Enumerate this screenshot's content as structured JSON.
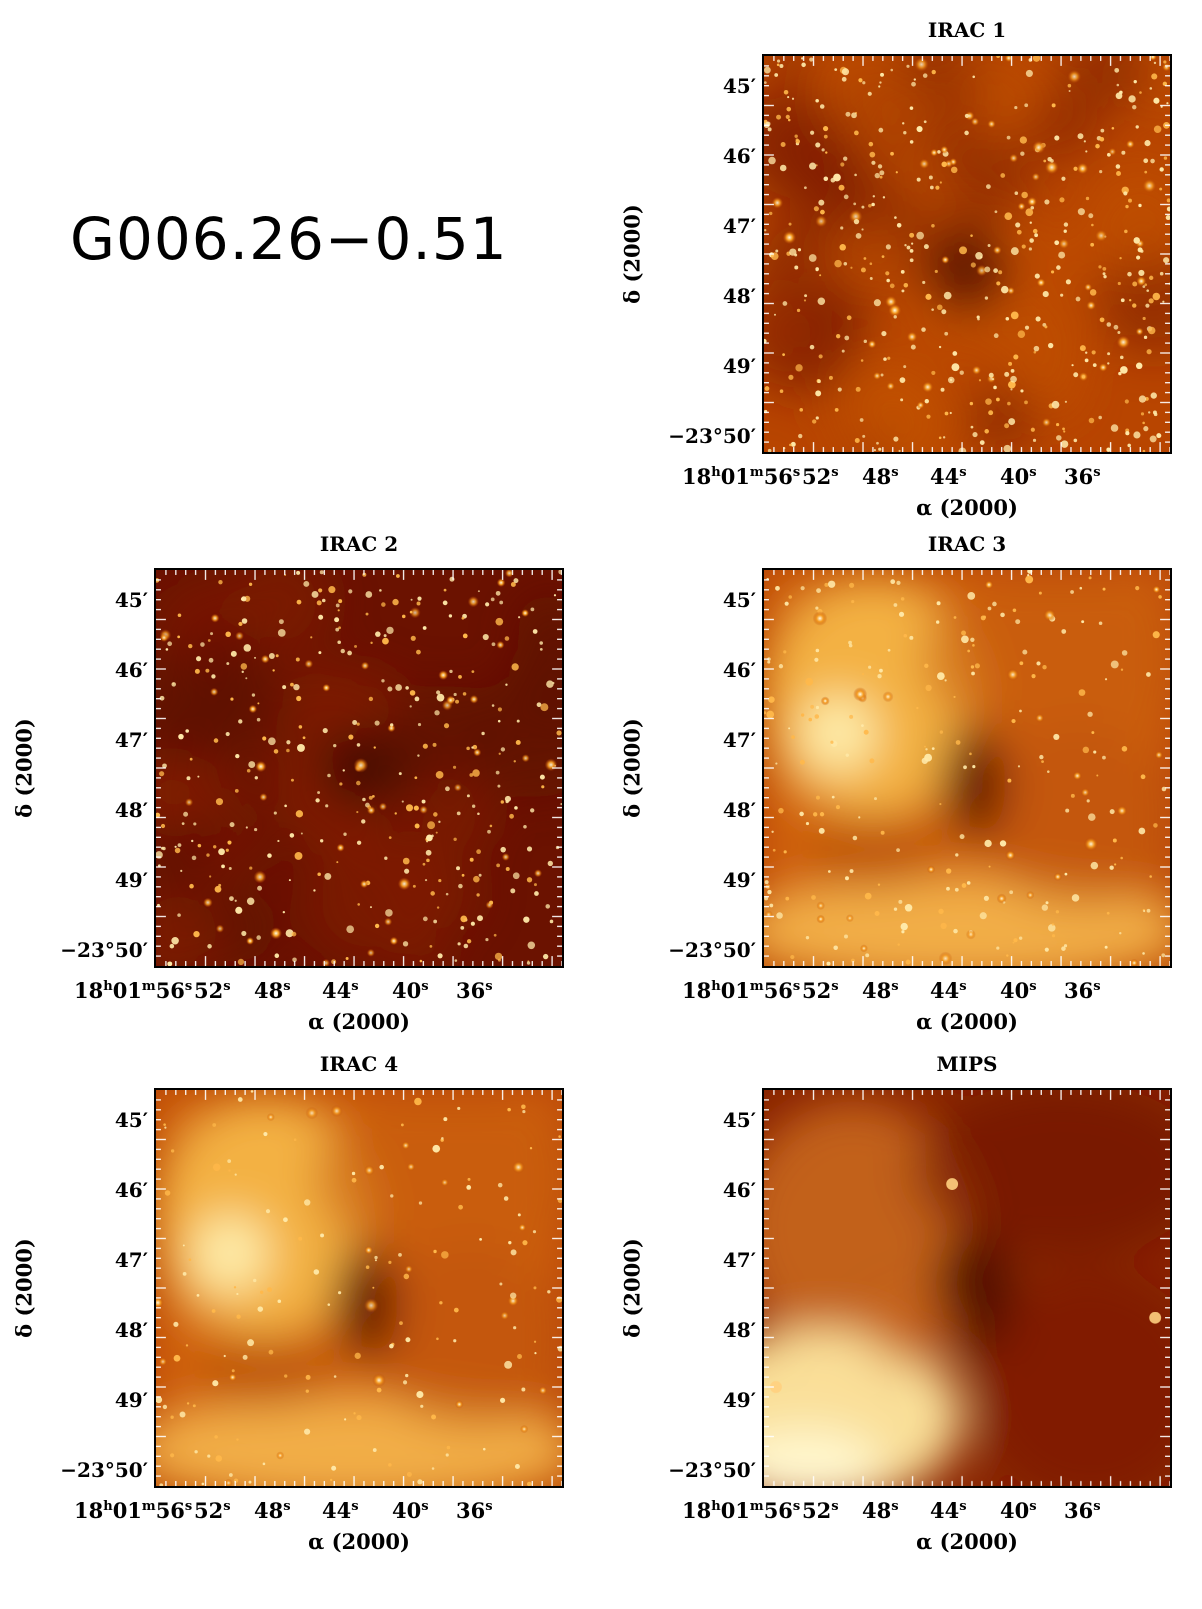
{
  "figure": {
    "object_name": "G006.26−0.51"
  },
  "axes": {
    "y_ticks": [
      "45′",
      "46′",
      "47′",
      "48′",
      "49′",
      "−23°50′"
    ],
    "y_label": "δ (2000)",
    "x_ticks": [
      "18h01m56s",
      "52s",
      "48s",
      "44s",
      "40s",
      "36s"
    ],
    "x_label": "α (2000)"
  },
  "panels": [
    {
      "id": "irac1",
      "title": "IRAC 1"
    },
    {
      "id": "irac2",
      "title": "IRAC 2"
    },
    {
      "id": "irac3",
      "title": "IRAC 3"
    },
    {
      "id": "irac4",
      "title": "IRAC 4"
    },
    {
      "id": "mips",
      "title": "MIPS"
    }
  ],
  "colors": {
    "dark": "#6b1200",
    "mid": "#b84500",
    "bright": "#f59b20",
    "hot": "#fff2b0"
  }
}
